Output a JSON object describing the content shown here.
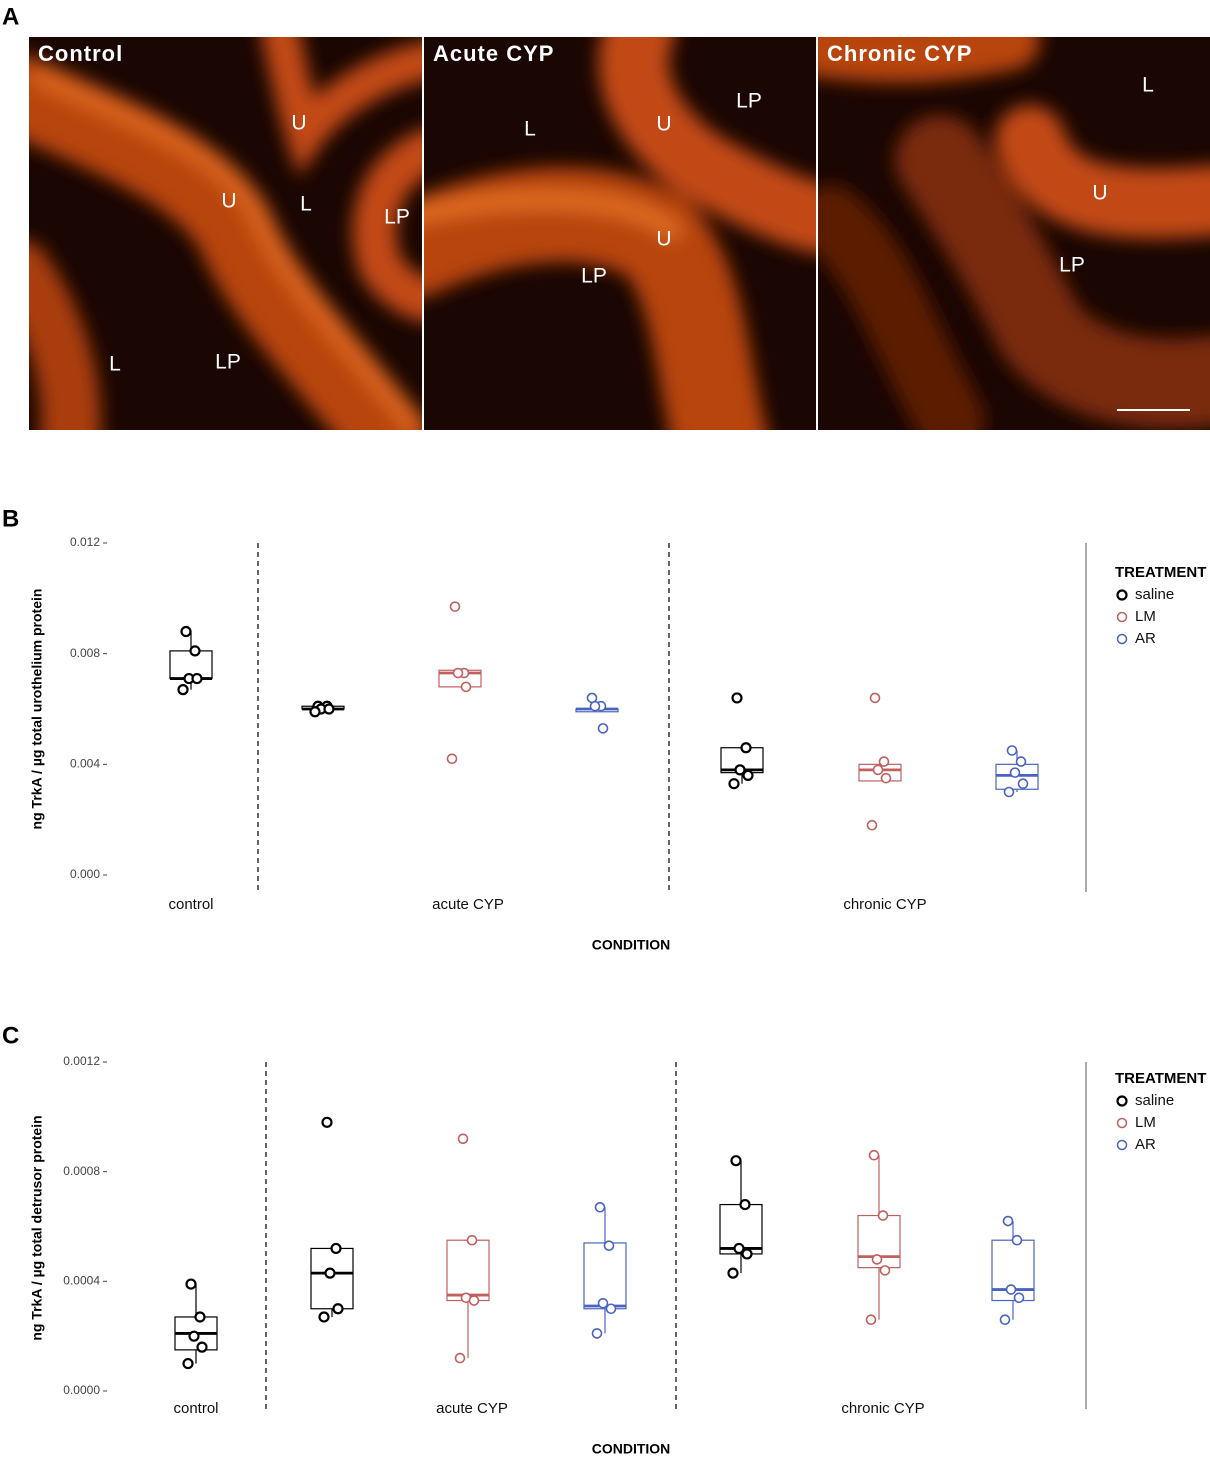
{
  "panel_a": {
    "label": "A",
    "images": [
      {
        "title": "Control",
        "labels": [
          "U",
          "U",
          "L",
          "LP",
          "L",
          "LP"
        ]
      },
      {
        "title": "Acute CYP",
        "labels": [
          "L",
          "U",
          "LP",
          "U",
          "LP"
        ]
      },
      {
        "title": "Chronic CYP",
        "labels": [
          "L",
          "U",
          "LP"
        ]
      }
    ]
  },
  "chart_data": [
    {
      "type": "boxplot",
      "panel_label": "B",
      "ylabel": "ng TrkA / µg total urothelium protein",
      "xlabel": "CONDITION",
      "legend_title": "TREATMENT",
      "categories": [
        "control",
        "acute CYP",
        "chronic CYP"
      ],
      "ylim": [
        0,
        0.012
      ],
      "yticks": [
        {
          "value": 0,
          "label": "0.000"
        },
        0.004,
        0.008,
        0.012
      ],
      "series": [
        {
          "name": "saline",
          "color": "#000000",
          "boxes": [
            {
              "points": [
                0.0088,
                0.0081,
                0.0071,
                0.0071,
                0.0067
              ],
              "q1": 0.0071,
              "median": 0.0071,
              "q3": 0.0081,
              "whisker_low": 0.0067,
              "whisker_high": 0.0088
            },
            {
              "points": [
                0.0061,
                0.0061,
                0.006,
                0.006,
                0.0059
              ],
              "q1": 0.006,
              "median": 0.006,
              "q3": 0.0061,
              "whisker_low": 0.0059,
              "whisker_high": 0.0061
            },
            {
              "points": [
                0.0064,
                0.0046,
                0.0038,
                0.0036,
                0.0033
              ],
              "q1": 0.0037,
              "median": 0.0038,
              "q3": 0.0046,
              "whisker_low": 0.0033,
              "whisker_high": 0.0046
            }
          ]
        },
        {
          "name": "LM",
          "color": "#c0605f",
          "boxes": [
            null,
            {
              "points": [
                0.0097,
                0.0073,
                0.0073,
                0.0068,
                0.0042
              ],
              "q1": 0.0068,
              "median": 0.0073,
              "q3": 0.0074,
              "whisker_low": 0.0068,
              "whisker_high": 0.0074
            },
            {
              "points": [
                0.0064,
                0.0041,
                0.0038,
                0.0035,
                0.0018
              ],
              "q1": 0.0034,
              "median": 0.0038,
              "q3": 0.004,
              "whisker_low": 0.0034,
              "whisker_high": 0.0041
            }
          ]
        },
        {
          "name": "AR",
          "color": "#4a63c0",
          "boxes": [
            null,
            {
              "points": [
                0.0064,
                0.0061,
                0.0061,
                0.0053
              ],
              "q1": 0.0059,
              "median": 0.006,
              "q3": 0.006,
              "whisker_low": 0.0059,
              "whisker_high": 0.006
            },
            {
              "points": [
                0.0045,
                0.0041,
                0.0037,
                0.0033,
                0.003
              ],
              "q1": 0.0031,
              "median": 0.0036,
              "q3": 0.004,
              "whisker_low": 0.003,
              "whisker_high": 0.0045
            }
          ]
        }
      ]
    },
    {
      "type": "boxplot",
      "panel_label": "C",
      "ylabel": "ng TrkA / µg total detrusor protein",
      "xlabel": "CONDITION",
      "legend_title": "TREATMENT",
      "categories": [
        "control",
        "acute CYP",
        "chronic CYP"
      ],
      "ylim": [
        0,
        0.0012
      ],
      "yticks": [
        {
          "value": 0,
          "label": "0.0000"
        },
        0.0004,
        0.0008,
        0.0012
      ],
      "series": [
        {
          "name": "saline",
          "color": "#000000",
          "boxes": [
            {
              "points": [
                0.00039,
                0.00027,
                0.0002,
                0.00016,
                0.0001
              ],
              "q1": 0.00015,
              "median": 0.00021,
              "q3": 0.00027,
              "whisker_low": 0.0001,
              "whisker_high": 0.00039
            },
            {
              "points": [
                0.00098,
                0.00052,
                0.00043,
                0.0003,
                0.00027
              ],
              "q1": 0.0003,
              "median": 0.00043,
              "q3": 0.00052,
              "whisker_low": 0.00027,
              "whisker_high": 0.00052
            },
            {
              "points": [
                0.00084,
                0.00068,
                0.00052,
                0.0005,
                0.00043
              ],
              "q1": 0.0005,
              "median": 0.00052,
              "q3": 0.00068,
              "whisker_low": 0.00043,
              "whisker_high": 0.00084
            }
          ]
        },
        {
          "name": "LM",
          "color": "#c0605f",
          "boxes": [
            null,
            {
              "points": [
                0.00092,
                0.00055,
                0.00034,
                0.00033,
                0.00012
              ],
              "q1": 0.00033,
              "median": 0.00035,
              "q3": 0.00055,
              "whisker_low": 0.00012,
              "whisker_high": 0.00055
            },
            {
              "points": [
                0.00086,
                0.00064,
                0.00048,
                0.00044,
                0.00026
              ],
              "q1": 0.00045,
              "median": 0.00049,
              "q3": 0.00064,
              "whisker_low": 0.00026,
              "whisker_high": 0.00086
            }
          ]
        },
        {
          "name": "AR",
          "color": "#4a63c0",
          "boxes": [
            null,
            {
              "points": [
                0.00067,
                0.00053,
                0.00032,
                0.0003,
                0.00021
              ],
              "q1": 0.0003,
              "median": 0.00031,
              "q3": 0.00054,
              "whisker_low": 0.00021,
              "whisker_high": 0.00067
            },
            {
              "points": [
                0.00062,
                0.00055,
                0.00037,
                0.00034,
                0.00026
              ],
              "q1": 0.00033,
              "median": 0.00037,
              "q3": 0.00055,
              "whisker_low": 0.00026,
              "whisker_high": 0.00062
            }
          ]
        }
      ]
    }
  ]
}
